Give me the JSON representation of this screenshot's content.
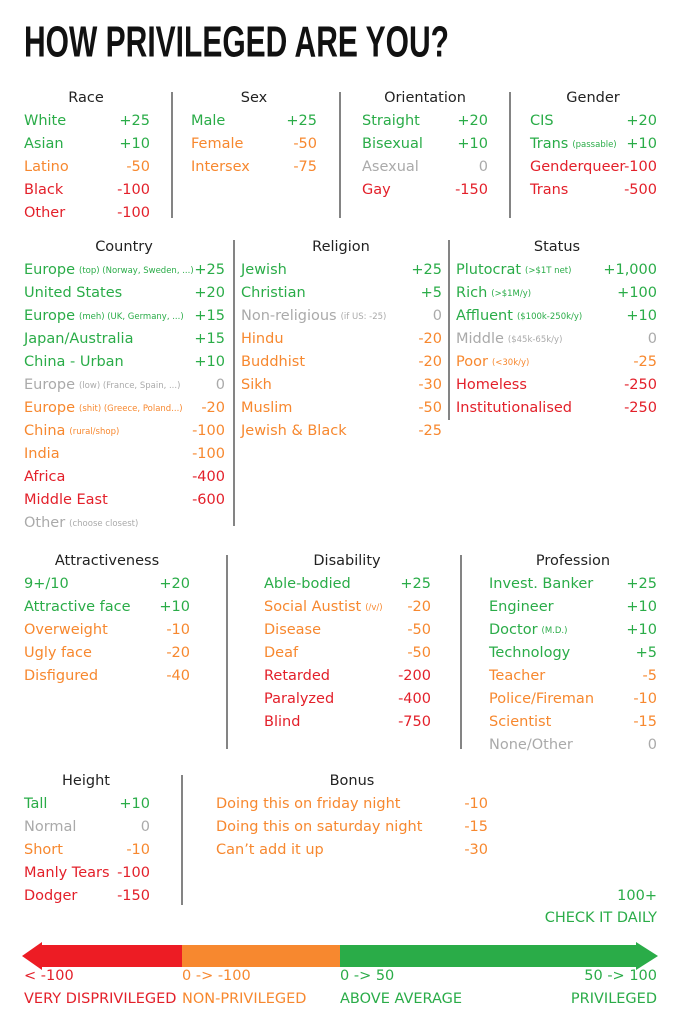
{
  "header": {
    "title": "HOW PRIVILEGED ARE YOU?"
  },
  "sections": [
    {
      "title": "Race",
      "items": [
        {
          "label": "White",
          "value": "+25",
          "tone": "green"
        },
        {
          "label": "Asian",
          "value": "+10",
          "tone": "green"
        },
        {
          "label": "Latino",
          "value": "-50",
          "tone": "orange"
        },
        {
          "label": "Black",
          "value": "-100",
          "tone": "red"
        },
        {
          "label": "Other",
          "value": "-100",
          "tone": "red"
        }
      ]
    },
    {
      "title": "Sex",
      "items": [
        {
          "label": "Male",
          "value": "+25",
          "tone": "green"
        },
        {
          "label": "Female",
          "value": "-50",
          "tone": "orange"
        },
        {
          "label": "Intersex",
          "value": "-75",
          "tone": "orange"
        }
      ]
    },
    {
      "title": "Orientation",
      "items": [
        {
          "label": "Straight",
          "value": "+20",
          "tone": "green"
        },
        {
          "label": "Bisexual",
          "value": "+10",
          "tone": "green"
        },
        {
          "label": "Asexual",
          "value": "0",
          "tone": "gray"
        },
        {
          "label": "Gay",
          "value": "-150",
          "tone": "red"
        }
      ]
    },
    {
      "title": "Gender",
      "items": [
        {
          "label": "CIS",
          "value": "+20",
          "tone": "green"
        },
        {
          "label": "Trans",
          "note": "(passable)",
          "value": "+10",
          "tone": "green"
        },
        {
          "label": "Genderqueer",
          "value": "-100",
          "tone": "red"
        },
        {
          "label": "Trans",
          "value": "-500",
          "tone": "red"
        }
      ]
    },
    {
      "title": "Country",
      "items": [
        {
          "label": "Europe",
          "note": "(top) (Norway, Sweden, ...)",
          "value": "+25",
          "tone": "green"
        },
        {
          "label": "United States",
          "value": "+20",
          "tone": "green"
        },
        {
          "label": "Europe",
          "note": "(meh) (UK, Germany, ...)",
          "value": "+15",
          "tone": "green"
        },
        {
          "label": "Japan/Australia",
          "value": "+15",
          "tone": "green"
        },
        {
          "label": "China - Urban",
          "value": "+10",
          "tone": "green"
        },
        {
          "label": "Europe",
          "note": "(low) (France, Spain, ...)",
          "value": "0",
          "tone": "gray"
        },
        {
          "label": "Europe",
          "note": "(shit) (Greece, Poland...)",
          "value": "-20",
          "tone": "orange"
        },
        {
          "label": "China",
          "note": "(rural/shop)",
          "value": "-100",
          "tone": "orange"
        },
        {
          "label": "India",
          "value": "-100",
          "tone": "orange"
        },
        {
          "label": "Africa",
          "value": "-400",
          "tone": "red"
        },
        {
          "label": "Middle East",
          "value": "-600",
          "tone": "red"
        },
        {
          "label": "Other",
          "note": "(choose closest)",
          "tone": "gray"
        }
      ]
    },
    {
      "title": "Religion",
      "items": [
        {
          "label": "Jewish",
          "value": "+25",
          "tone": "green"
        },
        {
          "label": "Christian",
          "value": "+5",
          "tone": "green"
        },
        {
          "label": "Non-religious",
          "note": "(if US: -25)",
          "value": "0",
          "tone": "gray"
        },
        {
          "label": "Hindu",
          "value": "-20",
          "tone": "orange"
        },
        {
          "label": "Buddhist",
          "value": "-20",
          "tone": "orange"
        },
        {
          "label": "Sikh",
          "value": "-30",
          "tone": "orange"
        },
        {
          "label": "Muslim",
          "value": "-50",
          "tone": "orange"
        },
        {
          "label": "Jewish & Black",
          "value": "-25",
          "tone": "orange"
        }
      ]
    },
    {
      "title": "Status",
      "items": [
        {
          "label": "Plutocrat",
          "note": "(>$1T net)",
          "value": "+1,000",
          "tone": "green"
        },
        {
          "label": "Rich",
          "note": "(>$1M/y)",
          "value": "+100",
          "tone": "green"
        },
        {
          "label": "Affluent",
          "note": "($100k-250k/y)",
          "value": "+10",
          "tone": "green"
        },
        {
          "label": "Middle",
          "note": "($45k-65k/y)",
          "value": "0",
          "tone": "gray"
        },
        {
          "label": "Poor",
          "note": "(<30k/y)",
          "value": "-25",
          "tone": "orange"
        },
        {
          "label": "Homeless",
          "value": "-250",
          "tone": "red"
        },
        {
          "label": "Institutionalised",
          "value": "-250",
          "tone": "red"
        }
      ]
    },
    {
      "title": "Attractiveness",
      "items": [
        {
          "label": "9+/10",
          "value": "+20",
          "tone": "green"
        },
        {
          "label": "Attractive face",
          "value": "+10",
          "tone": "green"
        },
        {
          "label": "Overweight",
          "value": "-10",
          "tone": "orange"
        },
        {
          "label": "Ugly face",
          "value": "-20",
          "tone": "orange"
        },
        {
          "label": "Disfigured",
          "value": "-40",
          "tone": "orange"
        }
      ]
    },
    {
      "title": "Disability",
      "items": [
        {
          "label": "Able-bodied",
          "value": "+25",
          "tone": "green"
        },
        {
          "label": "Social Austist",
          "note": "(/v/)",
          "value": "-20",
          "tone": "orange"
        },
        {
          "label": "Disease",
          "value": "-50",
          "tone": "orange"
        },
        {
          "label": "Deaf",
          "value": "-50",
          "tone": "orange"
        },
        {
          "label": "Retarded",
          "value": "-200",
          "tone": "red"
        },
        {
          "label": "Paralyzed",
          "value": "-400",
          "tone": "red"
        },
        {
          "label": "Blind",
          "value": "-750",
          "tone": "red"
        }
      ]
    },
    {
      "title": "Profession",
      "items": [
        {
          "label": "Invest. Banker",
          "value": "+25",
          "tone": "green"
        },
        {
          "label": "Engineer",
          "value": "+10",
          "tone": "green"
        },
        {
          "label": "Doctor",
          "note": "(M.D.)",
          "value": "+10",
          "tone": "green"
        },
        {
          "label": "Technology",
          "value": "+5",
          "tone": "green"
        },
        {
          "label": "Teacher",
          "value": "-5",
          "tone": "orange"
        },
        {
          "label": "Police/Fireman",
          "value": "-10",
          "tone": "orange"
        },
        {
          "label": "Scientist",
          "value": "-15",
          "tone": "orange"
        },
        {
          "label": "None/Other",
          "value": "0",
          "tone": "gray"
        }
      ]
    },
    {
      "title": "Height",
      "items": [
        {
          "label": "Tall",
          "value": "+10",
          "tone": "green"
        },
        {
          "label": "Normal",
          "value": "0",
          "tone": "gray"
        },
        {
          "label": "Short",
          "value": "-10",
          "tone": "orange"
        },
        {
          "label": "Manly Tears",
          "value": "-100",
          "tone": "red"
        },
        {
          "label": "Dodger",
          "value": "-150",
          "tone": "red"
        }
      ]
    },
    {
      "title": "Bonus",
      "items": [
        {
          "label": "Doing this on friday night",
          "value": "-10",
          "tone": "orange"
        },
        {
          "label": "Doing this on saturday night",
          "value": "-15",
          "tone": "orange"
        },
        {
          "label": "Can’t add it up",
          "value": "-30",
          "tone": "orange"
        }
      ]
    }
  ],
  "check": {
    "score": "100+",
    "label": "CHECK IT DAILY",
    "tone": "green"
  },
  "scale": [
    {
      "range": "< -100",
      "label": "VERY DISPRIVILEGED",
      "tone": "red"
    },
    {
      "range": "0 -> -100",
      "label": "NON-PRIVILEGED",
      "tone": "orange"
    },
    {
      "range": "0 -> 50",
      "label": "ABOVE AVERAGE",
      "tone": "green"
    },
    {
      "range": "50 -> 100",
      "label": "PRIVILEGED",
      "tone": "green"
    }
  ]
}
